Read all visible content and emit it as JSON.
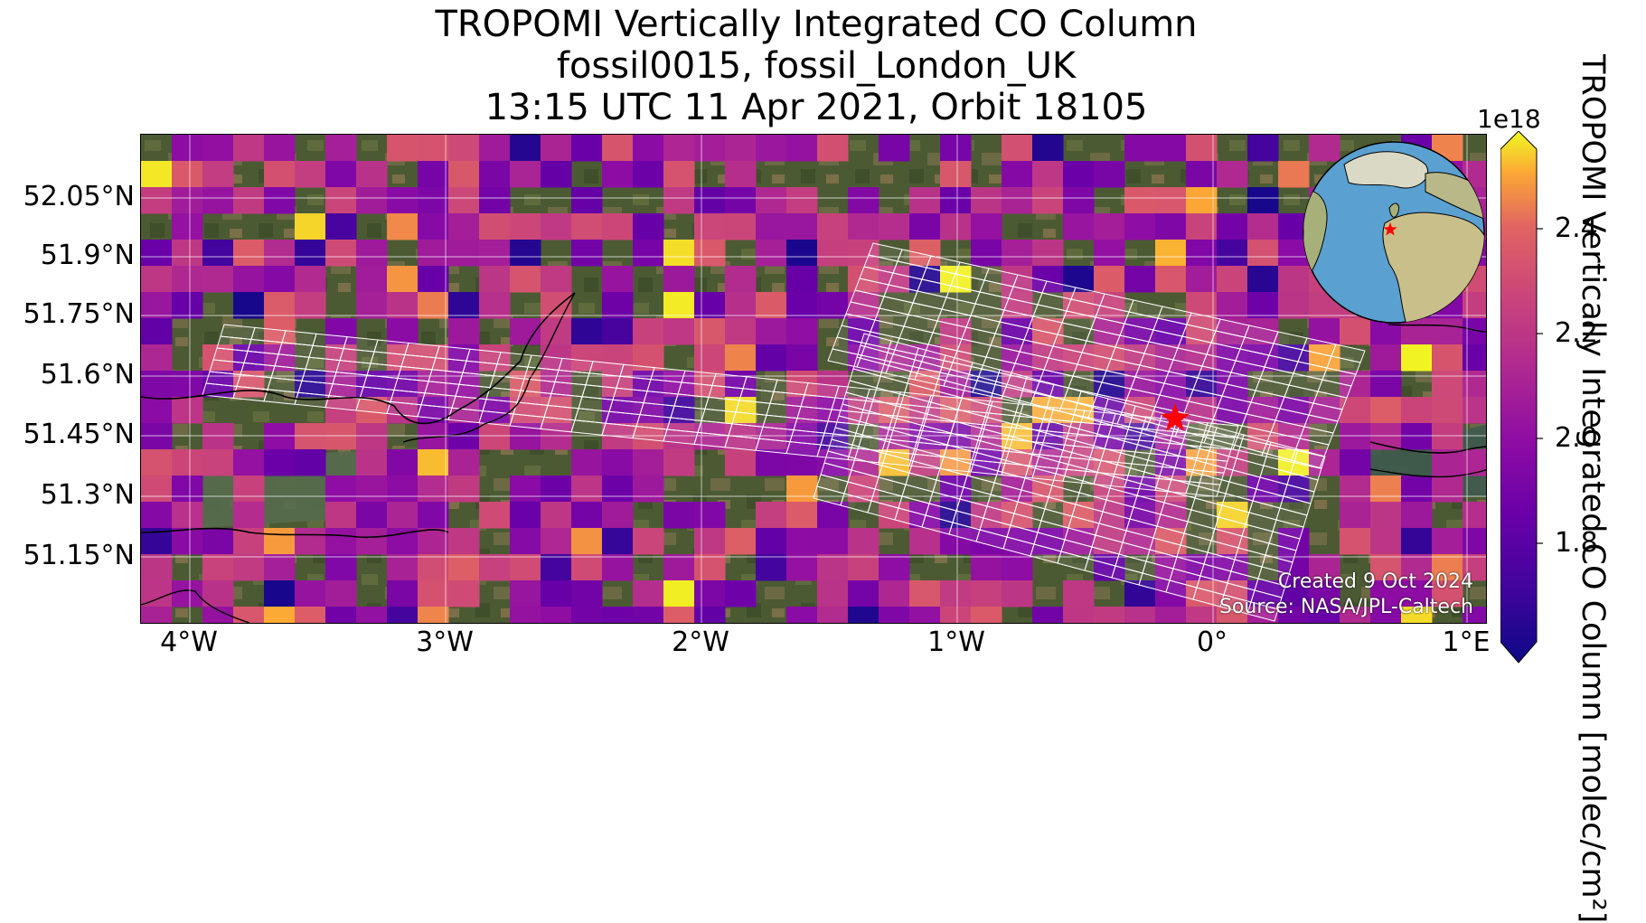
{
  "title": {
    "line1": "TROPOMI Vertically Integrated CO Column",
    "line2": "fossil0015, fossil_London_UK",
    "line3": "13:15 UTC 11 Apr 2021, Orbit 18105"
  },
  "map": {
    "lat_ticks": [
      "52.05°N",
      "51.9°N",
      "51.75°N",
      "51.6°N",
      "51.45°N",
      "51.3°N",
      "51.15°N"
    ],
    "lon_ticks": [
      "4°W",
      "3°W",
      "2°W",
      "1°W",
      "0°",
      "1°E"
    ],
    "target_marker": "red-star",
    "credits": {
      "line1": "Created 9 Oct 2024",
      "line2": "Source: NASA/JPL-Caltech"
    }
  },
  "colorbar": {
    "exponent": "1e18",
    "ticks": [
      "2.4",
      "2.2",
      "2.0",
      "1.8"
    ],
    "label": "TROPOMI Vertically Integrated CO Column [molec/cm²]",
    "colormap": "plasma"
  },
  "colors": {
    "marker": "#ff0000",
    "grid": "#ffffff",
    "ocean": "#5aa0d0",
    "land": "#c8c59a"
  }
}
